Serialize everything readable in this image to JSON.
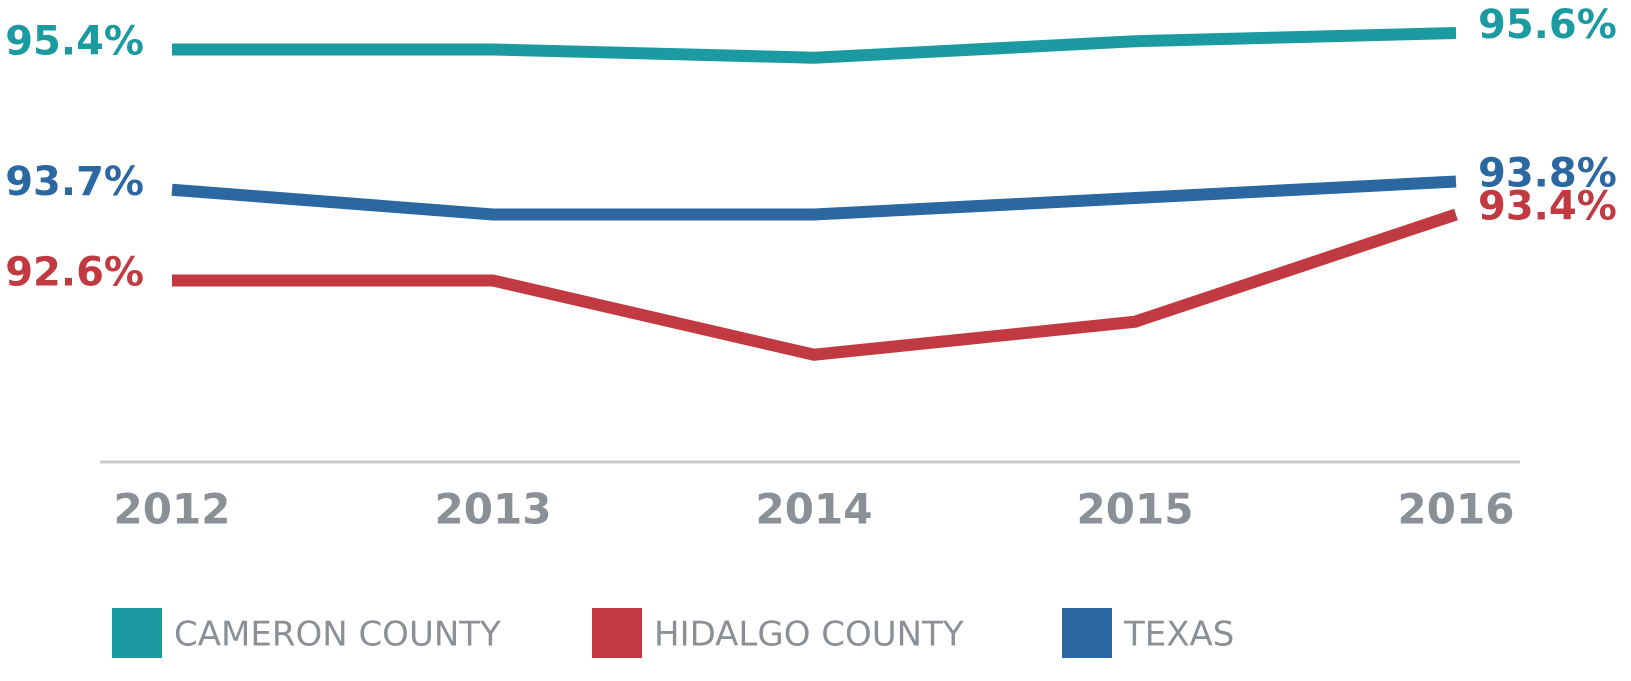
{
  "chart_data": {
    "type": "line",
    "categories": [
      "2012",
      "2013",
      "2014",
      "2015",
      "2016"
    ],
    "series": [
      {
        "name": "CAMERON COUNTY",
        "color": "#1b9aa1",
        "values": [
          95.4,
          95.4,
          95.3,
          95.5,
          95.6
        ],
        "value_labels": [
          "95.4%",
          null,
          null,
          null,
          "95.6%"
        ]
      },
      {
        "name": "HIDALGO COUNTY",
        "color": "#c13a42",
        "values": [
          92.6,
          92.6,
          91.7,
          92.1,
          93.4
        ],
        "value_labels": [
          "92.6%",
          null,
          null,
          null,
          "93.4%"
        ]
      },
      {
        "name": "TEXAS",
        "color": "#2b67a0",
        "values": [
          93.7,
          93.4,
          93.4,
          93.6,
          93.8
        ],
        "value_labels": [
          "93.7%",
          null,
          null,
          null,
          "93.8%"
        ]
      }
    ],
    "ylim": [
      90.4,
      96.0
    ],
    "grid": false,
    "legend": "bottom"
  }
}
